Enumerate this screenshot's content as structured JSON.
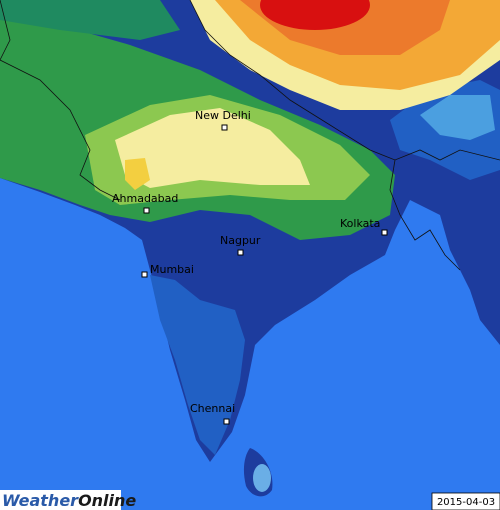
{
  "map": {
    "cities": [
      {
        "name": "New Delhi"
      },
      {
        "name": "Ahmadabad"
      },
      {
        "name": "Nagpur"
      },
      {
        "name": "Kolkata"
      },
      {
        "name": "Mumbai"
      },
      {
        "name": "Chennai"
      }
    ],
    "logo": {
      "first": "Weather",
      "second": "Online"
    },
    "date": "2015-04-03"
  }
}
